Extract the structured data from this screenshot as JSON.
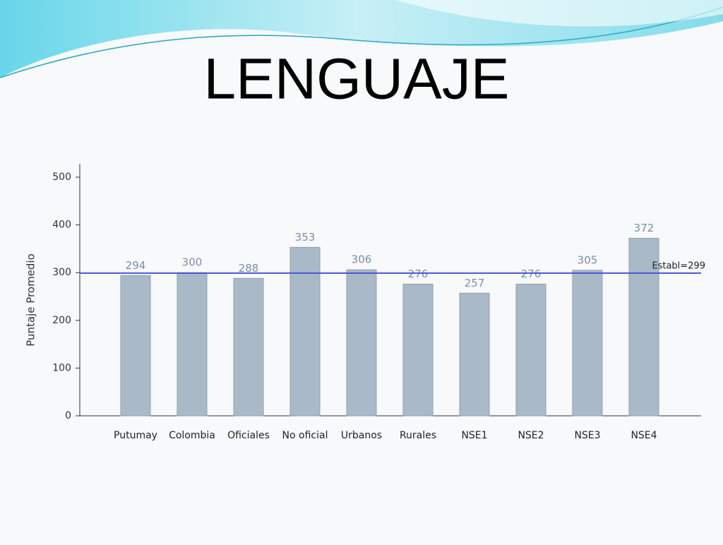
{
  "chart_data": {
    "type": "bar",
    "title": "LENGUAJE",
    "y_label": "Puntaje Promedio",
    "categories": [
      "Putumay",
      "Colombia",
      "Oficiales",
      "No oficial",
      "Urbanos",
      "Rurales",
      "NSE1",
      "NSE2",
      "NSE3",
      "NSE4"
    ],
    "values": [
      294,
      300,
      288,
      353,
      306,
      276,
      257,
      276,
      305,
      372
    ],
    "color": "#a9b9c7",
    "ylim": [
      0,
      500
    ],
    "yticks": [
      0,
      100,
      200,
      300,
      400,
      500
    ],
    "reference_line": {
      "value": 299,
      "label": "Establ=299",
      "color": "#4a55d6"
    }
  }
}
